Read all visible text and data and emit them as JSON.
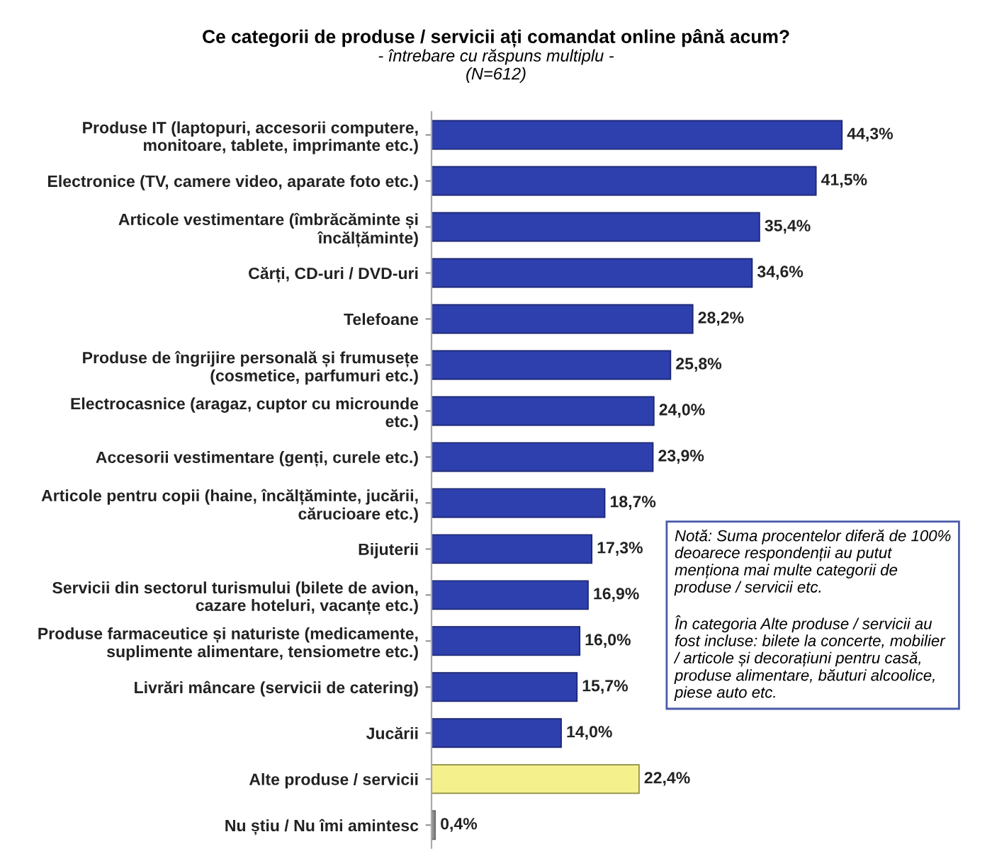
{
  "chart_data": {
    "type": "bar",
    "orientation": "horizontal",
    "title": "Ce categorii de produse / servicii ați comandat online până acum?",
    "subtitle": "- întrebare cu răspuns multiplu -\n(N=612)",
    "categories": [
      "Produse IT (laptopuri, accesorii computere,\nmonitoare, tablete, imprimante etc.)",
      "Electronice (TV, camere video, aparate foto etc.)",
      "Articole vestimentare (îmbrăcăminte și\nîncălțăminte)",
      "Cărți, CD-uri / DVD-uri",
      "Telefoane",
      "Produse de îngrijire personală și frumusețe\n(cosmetice, parfumuri etc.)",
      "Electrocasnice (aragaz, cuptor cu microunde\netc.)",
      "Accesorii vestimentare (genți, curele etc.)",
      "Articole pentru copii (haine, încălțăminte, jucării,\ncărucioare etc.)",
      "Bijuterii",
      "Servicii din sectorul turismului (bilete de avion,\ncazare hoteluri, vacanțe etc.)",
      "Produse farmaceutice și naturiste (medicamente,\nsuplimente alimentare, tensiometre etc.)",
      "Livrări mâncare (servicii de catering)",
      "Jucării",
      "Alte produse / servicii",
      "Nu știu / Nu îmi amintesc"
    ],
    "values": [
      44.3,
      41.5,
      35.4,
      34.6,
      28.2,
      25.8,
      24.0,
      23.9,
      18.7,
      17.3,
      16.9,
      16.0,
      15.7,
      14.0,
      22.4,
      0.4
    ],
    "colors": [
      "#2e3fae",
      "#2e3fae",
      "#2e3fae",
      "#2e3fae",
      "#2e3fae",
      "#2e3fae",
      "#2e3fae",
      "#2e3fae",
      "#2e3fae",
      "#2e3fae",
      "#2e3fae",
      "#2e3fae",
      "#2e3fae",
      "#2e3fae",
      "#f4f08c",
      "#8c8c8c"
    ],
    "value_labels": [
      "44,3%",
      "41,5%",
      "35,4%",
      "34,6%",
      "28,2%",
      "25,8%",
      "24,0%",
      "23,9%",
      "18,7%",
      "17,3%",
      "16,9%",
      "16,0%",
      "15,7%",
      "14,0%",
      "22,4%",
      "0,4%"
    ],
    "annotations": [
      "Notă: Suma procentelor diferă de 100% deoarece respondenții au putut menționa mai multe categorii de produse / servicii etc.",
      "În categoria Alte produse / servicii au fost incluse: bilete la concerte, mobilier / articole și decorațiuni pentru casă, produse alimentare, băuturi alcoolice, piese auto etc."
    ],
    "grid": false,
    "legend": false
  }
}
